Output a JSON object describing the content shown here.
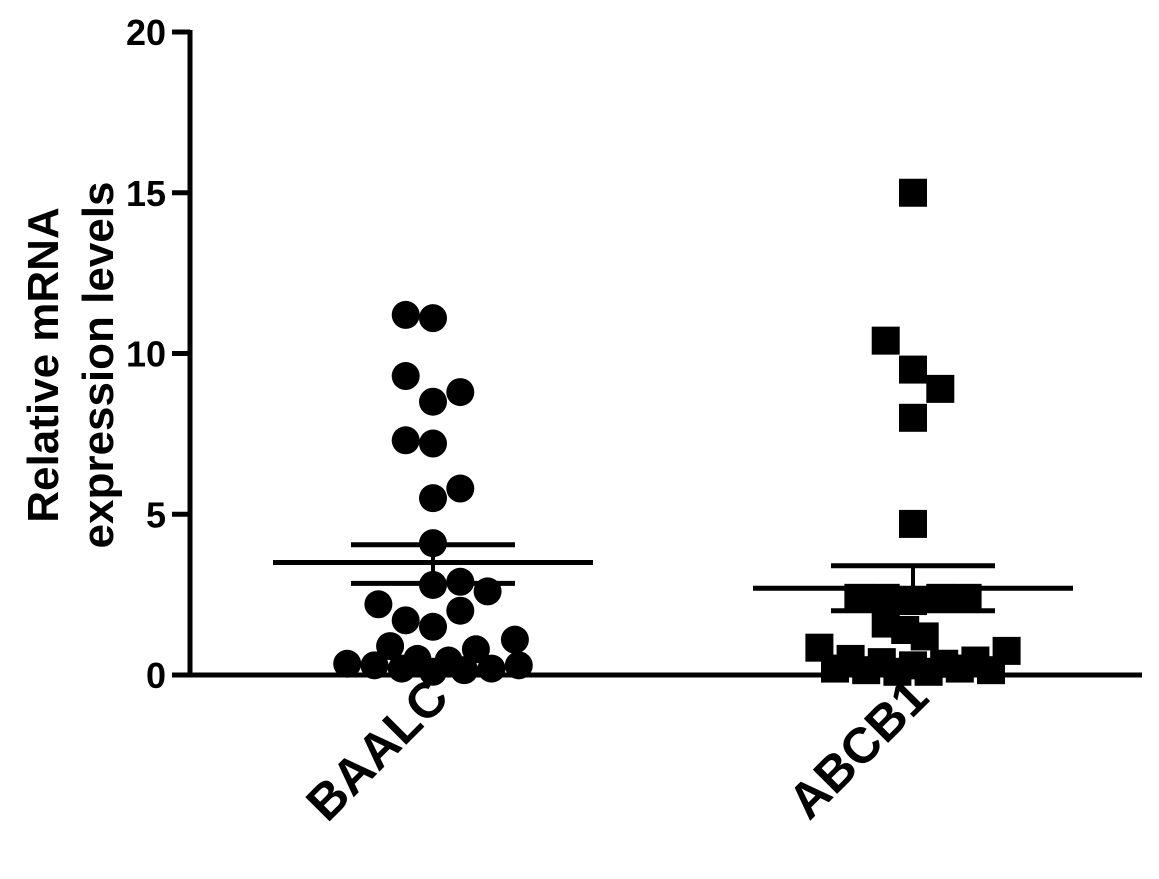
{
  "chart_data": {
    "type": "scatter",
    "ylabel_lines": [
      "Relative mRNA",
      "expression levels"
    ],
    "categories": [
      "BAALC",
      "ABCB1"
    ],
    "ylim": [
      0,
      20
    ],
    "yticks": [
      0,
      5,
      10,
      15,
      20
    ],
    "grid": false,
    "series": [
      {
        "name": "BAALC",
        "marker": "circle",
        "color": "#000000",
        "mean": 3.5,
        "sem_upper": 4.05,
        "sem_lower": 2.85,
        "points": [
          {
            "dx": -0.7,
            "y": 11.2
          },
          {
            "dx": 0.0,
            "y": 11.1
          },
          {
            "dx": -0.7,
            "y": 9.3
          },
          {
            "dx": 0.0,
            "y": 8.5
          },
          {
            "dx": 0.7,
            "y": 8.8
          },
          {
            "dx": -0.7,
            "y": 7.3
          },
          {
            "dx": 0.0,
            "y": 7.2
          },
          {
            "dx": 0.0,
            "y": 5.5
          },
          {
            "dx": 0.7,
            "y": 5.8
          },
          {
            "dx": 0.0,
            "y": 4.1
          },
          {
            "dx": 0.0,
            "y": 2.8
          },
          {
            "dx": 0.7,
            "y": 2.9
          },
          {
            "dx": 1.4,
            "y": 2.6
          },
          {
            "dx": -1.4,
            "y": 2.2
          },
          {
            "dx": -0.7,
            "y": 1.7
          },
          {
            "dx": 0.0,
            "y": 1.5
          },
          {
            "dx": 0.7,
            "y": 2.0
          },
          {
            "dx": -1.1,
            "y": 0.9
          },
          {
            "dx": 1.1,
            "y": 0.8
          },
          {
            "dx": 2.1,
            "y": 1.1
          },
          {
            "dx": -2.2,
            "y": 0.35
          },
          {
            "dx": -1.5,
            "y": 0.3
          },
          {
            "dx": -0.8,
            "y": 0.2
          },
          {
            "dx": -0.4,
            "y": 0.5
          },
          {
            "dx": 0.0,
            "y": 0.1
          },
          {
            "dx": 0.4,
            "y": 0.45
          },
          {
            "dx": 0.8,
            "y": 0.15
          },
          {
            "dx": 1.5,
            "y": 0.2
          },
          {
            "dx": 2.2,
            "y": 0.3
          }
        ]
      },
      {
        "name": "ABCB1",
        "marker": "square",
        "color": "#000000",
        "mean": 2.7,
        "sem_upper": 3.4,
        "sem_lower": 2.0,
        "points": [
          {
            "dx": 0.0,
            "y": 15.0
          },
          {
            "dx": -0.7,
            "y": 10.4
          },
          {
            "dx": 0.0,
            "y": 9.5
          },
          {
            "dx": 0.7,
            "y": 8.9
          },
          {
            "dx": 0.0,
            "y": 8.0
          },
          {
            "dx": 0.0,
            "y": 4.7
          },
          {
            "dx": -1.4,
            "y": 2.4
          },
          {
            "dx": -0.7,
            "y": 2.4
          },
          {
            "dx": 0.0,
            "y": 2.3
          },
          {
            "dx": 0.7,
            "y": 2.4
          },
          {
            "dx": 1.4,
            "y": 2.4
          },
          {
            "dx": -0.7,
            "y": 1.6
          },
          {
            "dx": -0.2,
            "y": 1.4
          },
          {
            "dx": 0.3,
            "y": 1.2
          },
          {
            "dx": -2.4,
            "y": 0.85
          },
          {
            "dx": 2.4,
            "y": 0.75
          },
          {
            "dx": -2.0,
            "y": 0.2
          },
          {
            "dx": -1.6,
            "y": 0.5
          },
          {
            "dx": -1.2,
            "y": 0.15
          },
          {
            "dx": -0.8,
            "y": 0.4
          },
          {
            "dx": -0.4,
            "y": 0.1
          },
          {
            "dx": 0.0,
            "y": 0.3
          },
          {
            "dx": 0.4,
            "y": 0.1
          },
          {
            "dx": 0.8,
            "y": 0.35
          },
          {
            "dx": 1.2,
            "y": 0.2
          },
          {
            "dx": 1.6,
            "y": 0.45
          },
          {
            "dx": 2.0,
            "y": 0.15
          }
        ]
      }
    ]
  }
}
